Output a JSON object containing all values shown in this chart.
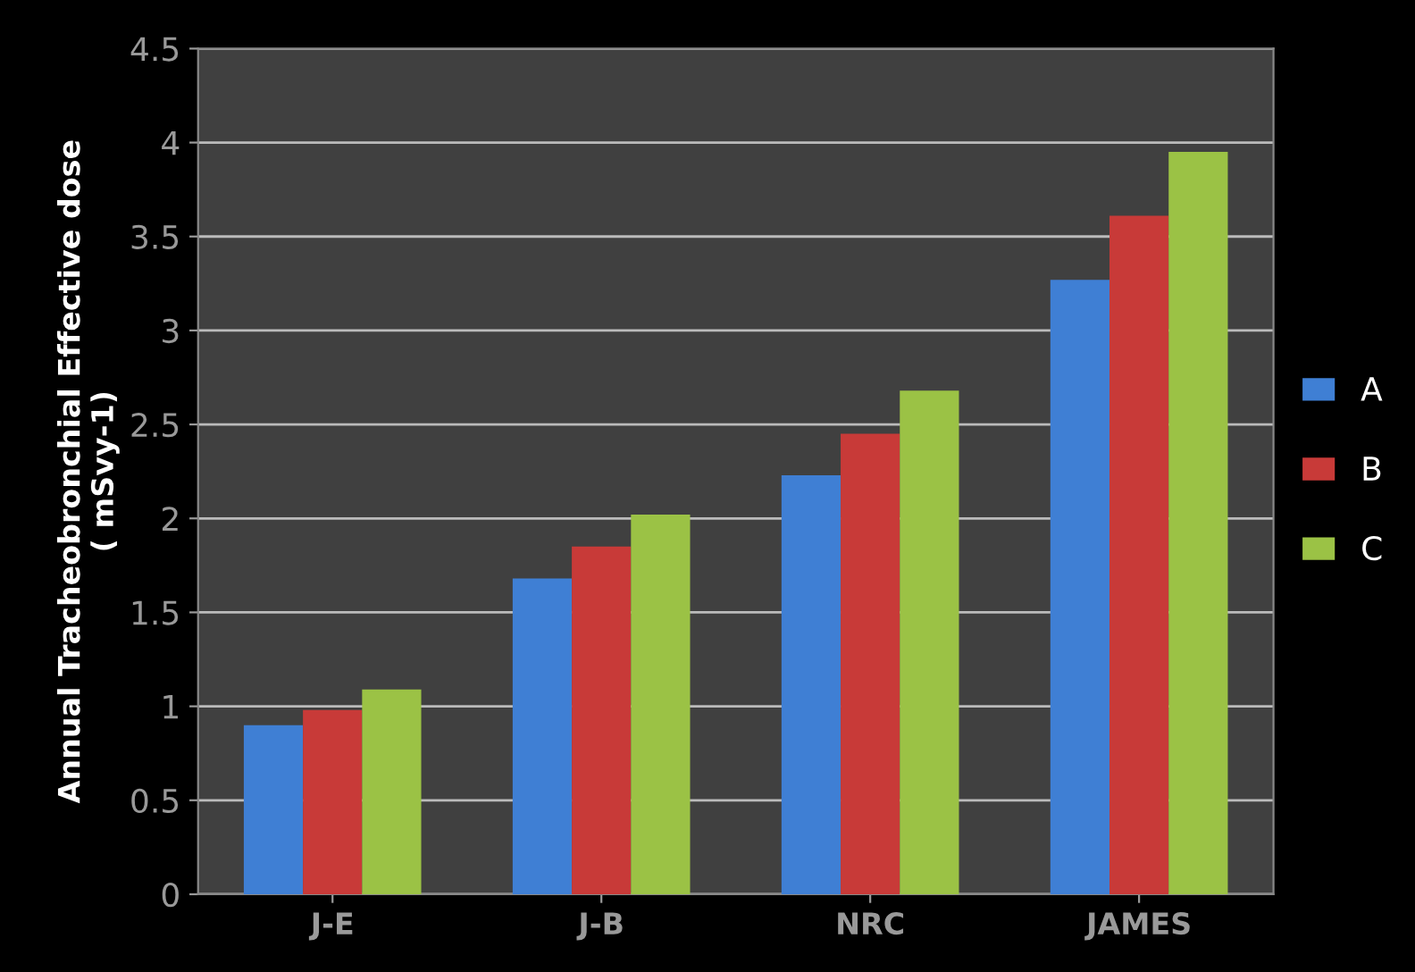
{
  "chart_data": {
    "type": "bar",
    "ylabel": "Annual Tracheobronchial Effective dose\n( mSvy-1)",
    "categories": [
      "J-E",
      "J-B",
      "NRC",
      "JAMES"
    ],
    "series": [
      {
        "name": "A",
        "color": "#3f7fd4",
        "values": [
          0.9,
          1.68,
          2.23,
          3.27
        ]
      },
      {
        "name": "B",
        "color": "#c83a38",
        "values": [
          0.98,
          1.85,
          2.45,
          3.61
        ]
      },
      {
        "name": "C",
        "color": "#9bc245",
        "values": [
          1.09,
          2.02,
          2.68,
          3.95
        ]
      }
    ],
    "ylim": [
      0,
      4.5
    ],
    "yticks": [
      0,
      0.5,
      1,
      1.5,
      2,
      2.5,
      3,
      3.5,
      4,
      4.5
    ],
    "grid": "y",
    "legend": "right"
  }
}
